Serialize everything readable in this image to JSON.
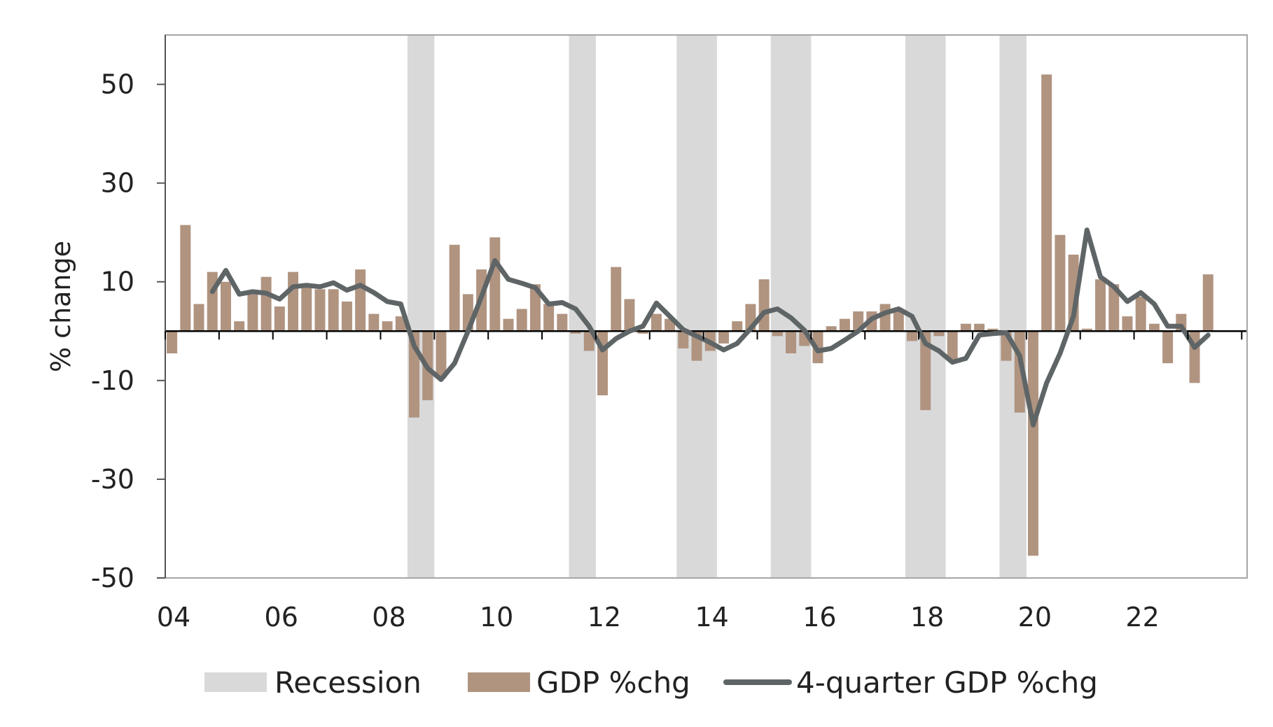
{
  "chart_data": {
    "type": "bar",
    "title": "",
    "xlabel": "",
    "ylabel": "% change",
    "ylim": [
      -50,
      60
    ],
    "xlim": [
      2004.0,
      2024.1
    ],
    "yticks": [
      50,
      30,
      10,
      -10,
      -30,
      -50
    ],
    "ytick_labels": [
      "50",
      "30",
      "10",
      "-10",
      "-30",
      "-50"
    ],
    "xtick_labels": [
      "04",
      "06",
      "08",
      "10",
      "12",
      "14",
      "16",
      "18",
      "20",
      "22"
    ],
    "grid": false,
    "legend_position": "bottom",
    "colors": {
      "recession": "#d9d9d9",
      "bars": "#b09480",
      "line": "#5f6566",
      "zero_line": "#000000",
      "frame": "#a6a6a6",
      "text": "#222222"
    },
    "recessions": [
      [
        2008.5,
        2009.0
      ],
      [
        2011.5,
        2012.0
      ],
      [
        2013.5,
        2014.25
      ],
      [
        2015.25,
        2016.0
      ],
      [
        2017.75,
        2018.5
      ],
      [
        2019.5,
        2020.0
      ]
    ],
    "series": [
      {
        "name": "GDP %chg",
        "type": "bar",
        "x": [
          2004.0,
          2004.25,
          2004.5,
          2004.75,
          2005.0,
          2005.25,
          2005.5,
          2005.75,
          2006.0,
          2006.25,
          2006.5,
          2006.75,
          2007.0,
          2007.25,
          2007.5,
          2007.75,
          2008.0,
          2008.25,
          2008.5,
          2008.75,
          2009.0,
          2009.25,
          2009.5,
          2009.75,
          2010.0,
          2010.25,
          2010.5,
          2010.75,
          2011.0,
          2011.25,
          2011.5,
          2011.75,
          2012.0,
          2012.25,
          2012.5,
          2012.75,
          2013.0,
          2013.25,
          2013.5,
          2013.75,
          2014.0,
          2014.25,
          2014.5,
          2014.75,
          2015.0,
          2015.25,
          2015.5,
          2015.75,
          2016.0,
          2016.25,
          2016.5,
          2016.75,
          2017.0,
          2017.25,
          2017.5,
          2017.75,
          2018.0,
          2018.25,
          2018.5,
          2018.75,
          2019.0,
          2019.25,
          2019.5,
          2019.75,
          2020.0,
          2020.25,
          2020.5,
          2020.75,
          2021.0,
          2021.25,
          2021.5,
          2021.75,
          2022.0,
          2022.25,
          2022.5,
          2022.75,
          2023.0,
          2023.25
        ],
        "values": [
          -4.5,
          21.5,
          5.5,
          12.0,
          10.0,
          2.0,
          7.5,
          11.0,
          5.0,
          12.0,
          9.0,
          8.5,
          8.5,
          6.0,
          12.5,
          3.5,
          2.0,
          3.0,
          -17.5,
          -14.0,
          -9.5,
          17.5,
          7.5,
          12.5,
          19.0,
          2.5,
          4.5,
          9.5,
          5.5,
          3.5,
          -0.5,
          -4.0,
          -13.0,
          13.0,
          6.5,
          -0.5,
          3.5,
          2.5,
          -3.5,
          -6.0,
          -4.0,
          -2.5,
          2.0,
          5.5,
          10.5,
          -1.0,
          -4.5,
          -3.0,
          -6.5,
          1.0,
          2.5,
          4.0,
          4.0,
          5.5,
          4.5,
          -2.0,
          -16.0,
          -1.0,
          -6.0,
          1.5,
          1.5,
          0.5,
          -6.0,
          -16.5,
          -45.5,
          52.0,
          19.5,
          15.5,
          0.5,
          10.5,
          9.5,
          3.0,
          7.0,
          1.5,
          -6.5,
          3.5,
          -10.5,
          11.5
        ]
      },
      {
        "name": "4-quarter GDP %chg",
        "type": "line",
        "x": [
          2004.75,
          2005.0,
          2005.25,
          2005.5,
          2005.75,
          2006.0,
          2006.25,
          2006.5,
          2006.75,
          2007.0,
          2007.25,
          2007.5,
          2007.75,
          2008.0,
          2008.25,
          2008.5,
          2008.75,
          2009.0,
          2009.25,
          2009.5,
          2009.75,
          2010.0,
          2010.25,
          2010.5,
          2010.75,
          2011.0,
          2011.25,
          2011.5,
          2011.75,
          2012.0,
          2012.25,
          2012.5,
          2012.75,
          2013.0,
          2013.25,
          2013.5,
          2013.75,
          2014.0,
          2014.25,
          2014.5,
          2014.75,
          2015.0,
          2015.25,
          2015.5,
          2015.75,
          2016.0,
          2016.25,
          2016.5,
          2016.75,
          2017.0,
          2017.25,
          2017.5,
          2017.75,
          2018.0,
          2018.25,
          2018.5,
          2018.75,
          2019.0,
          2019.25,
          2019.5,
          2019.75,
          2020.0,
          2020.25,
          2020.5,
          2020.75,
          2021.0,
          2021.25,
          2021.5,
          2021.75,
          2022.0,
          2022.25,
          2022.5,
          2022.75,
          2023.0,
          2023.25
        ],
        "values": [
          8.0,
          12.3,
          7.5,
          8.0,
          7.7,
          6.5,
          9.0,
          9.3,
          9.0,
          9.8,
          8.3,
          9.3,
          7.8,
          6.0,
          5.5,
          -3.0,
          -7.5,
          -9.8,
          -6.5,
          0.0,
          7.0,
          14.3,
          10.5,
          9.7,
          8.8,
          5.5,
          5.8,
          4.5,
          1.0,
          -3.8,
          -1.5,
          0.0,
          1.0,
          5.7,
          3.0,
          0.3,
          -1.0,
          -2.3,
          -3.8,
          -2.5,
          0.5,
          3.8,
          4.5,
          2.7,
          0.2,
          -4.0,
          -3.5,
          -1.8,
          0.0,
          2.5,
          3.7,
          4.5,
          3.0,
          -2.5,
          -4.0,
          -6.3,
          -5.5,
          -0.8,
          -0.5,
          -0.3,
          -5.0,
          -19.0,
          -10.5,
          -4.5,
          3.0,
          20.5,
          11.0,
          9.0,
          6.0,
          7.8,
          5.5,
          1.0,
          1.0,
          -3.3,
          -0.8
        ]
      }
    ],
    "legend": [
      {
        "label": "Recession",
        "kind": "swatch",
        "color": "#d9d9d9"
      },
      {
        "label": "GDP %chg",
        "kind": "swatch",
        "color": "#b09480"
      },
      {
        "label": "4-quarter GDP %chg",
        "kind": "line",
        "color": "#5f6566"
      }
    ]
  }
}
